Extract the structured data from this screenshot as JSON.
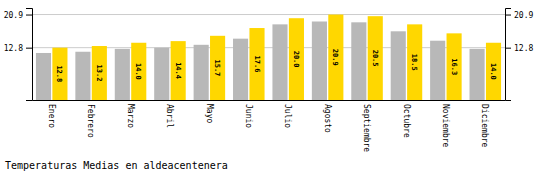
{
  "chart_data": {
    "type": "bar",
    "title": "Temperaturas Medias en aldeacentenera",
    "categories": [
      "Enero",
      "Febrero",
      "Marzo",
      "Abril",
      "Mayo",
      "Junio",
      "Julio",
      "Agosto",
      "Septiembre",
      "Octubre",
      "Noviembre",
      "Diciembre"
    ],
    "series": [
      {
        "color": "#B8B8B8",
        "values": [
          11.5,
          11.8,
          12.5,
          12.8,
          13.5,
          15.0,
          18.5,
          19.2,
          19.0,
          16.8,
          14.5,
          12.5
        ]
      },
      {
        "color": "#FFD700",
        "values": [
          12.8,
          13.2,
          14.0,
          14.4,
          15.7,
          17.6,
          20.0,
          20.9,
          20.5,
          18.5,
          16.3,
          14.0
        ],
        "value_labels": [
          "12.8",
          "13.2",
          "14.0",
          "14.4",
          "15.7",
          "17.6",
          "20.0",
          "20.9",
          "20.5",
          "18.5",
          "16.3",
          "14.0"
        ],
        "data_labels": true
      }
    ],
    "ylim": [
      0,
      22.5
    ],
    "yticks": [
      12.8,
      20.9
    ],
    "y2lim": [
      0,
      22.5
    ],
    "y2ticks": [
      12.8,
      20.9
    ],
    "grid": true
  }
}
